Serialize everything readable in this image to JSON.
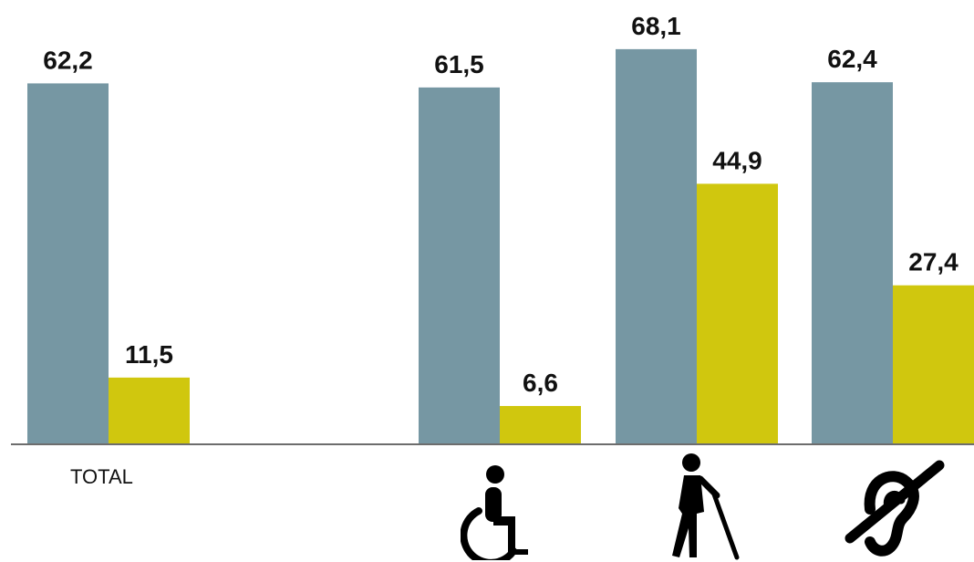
{
  "chart_data": {
    "type": "bar",
    "categories": [
      "TOTAL",
      "wheelchair-icon",
      "walking-cane-icon",
      "hearing-impaired-icon"
    ],
    "category_labels": [
      "TOTAL",
      "",
      "",
      ""
    ],
    "series": [
      {
        "values": [
          62.2,
          61.5,
          68.1,
          62.4
        ],
        "labels": [
          "62,2",
          "61,5",
          "68,1",
          "62,4"
        ]
      },
      {
        "values": [
          11.5,
          6.6,
          44.9,
          27.4
        ],
        "labels": [
          "11,5",
          "6,6",
          "44,9",
          "27,4"
        ]
      }
    ],
    "colors": [
      "#7697a3",
      "#d0c70e"
    ],
    "ylim": [
      0,
      70
    ],
    "grid": false,
    "legend": "none"
  }
}
